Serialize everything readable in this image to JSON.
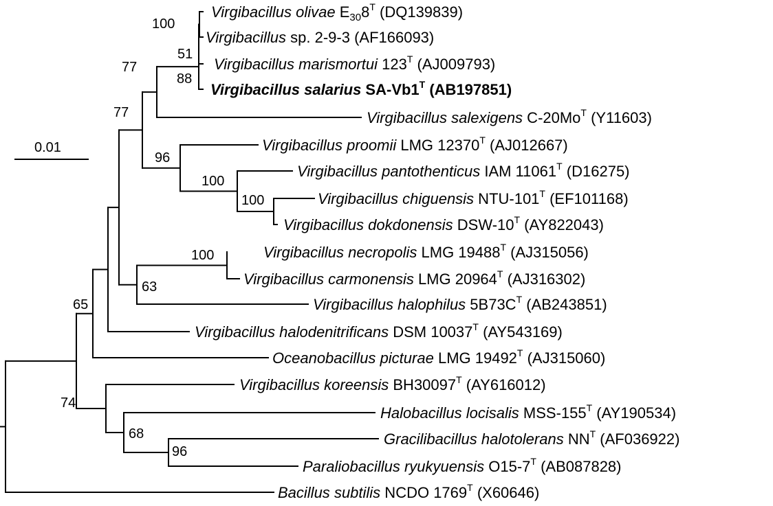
{
  "scale_bar": {
    "label": "0.01"
  },
  "taxa": [
    {
      "genus": "Virgibacillus",
      "species": "olivae",
      "strain_pre": "E",
      "strain_sub": "30",
      "strain_post": "8",
      "type": "T",
      "acc": "(DQ139839)",
      "bold": false
    },
    {
      "genus": "Virgibacillus",
      "species": "sp.",
      "strain_pre": "2-9-3",
      "strain_sub": "",
      "strain_post": "",
      "type": "",
      "acc": "(AF166093)",
      "bold": false,
      "species_upright": true
    },
    {
      "genus": "Virgibacillus",
      "species": "marismortui",
      "strain_pre": "123",
      "strain_sub": "",
      "strain_post": "",
      "type": "T",
      "acc": "(AJ009793)",
      "bold": false
    },
    {
      "genus": "Virgibacillus",
      "species": "salarius",
      "strain_pre": "SA-Vb1",
      "strain_sub": "",
      "strain_post": "",
      "type": "T",
      "acc": "(AB197851)",
      "bold": true
    },
    {
      "genus": "Virgibacillus",
      "species": "salexigens",
      "strain_pre": "C-20Mo",
      "strain_sub": "",
      "strain_post": "",
      "type": "T",
      "acc": "(Y11603)",
      "bold": false
    },
    {
      "genus": "Virgibacillus",
      "species": "proomii",
      "strain_pre": "LMG 12370",
      "strain_sub": "",
      "strain_post": "",
      "type": "T",
      "acc": "(AJ012667)",
      "bold": false
    },
    {
      "genus": "Virgibacillus",
      "species": "pantothenticus",
      "strain_pre": "IAM 11061",
      "strain_sub": "",
      "strain_post": "",
      "type": "T",
      "acc": "(D16275)",
      "bold": false
    },
    {
      "genus": "Virgibacillus",
      "species": "chiguensis",
      "strain_pre": "NTU-101",
      "strain_sub": "",
      "strain_post": "",
      "type": "T",
      "acc": "(EF101168)",
      "bold": false
    },
    {
      "genus": "Virgibacillus",
      "species": "dokdonensis",
      "strain_pre": "DSW-10",
      "strain_sub": "",
      "strain_post": "",
      "type": "T",
      "acc": "(AY822043)",
      "bold": false
    },
    {
      "genus": "Virgibacillus",
      "species": "necropolis",
      "strain_pre": "LMG 19488",
      "strain_sub": "",
      "strain_post": "",
      "type": "T",
      "acc": "(AJ315056)",
      "bold": false
    },
    {
      "genus": "Virgibacillus",
      "species": "carmonensis",
      "strain_pre": "LMG 20964",
      "strain_sub": "",
      "strain_post": "",
      "type": "T",
      "acc": "(AJ316302)",
      "bold": false
    },
    {
      "genus": "Virgibacillus",
      "species": "halophilus",
      "strain_pre": "5B73C",
      "strain_sub": "",
      "strain_post": "",
      "type": "T",
      "acc": "(AB243851)",
      "bold": false
    },
    {
      "genus": "Virgibacillus",
      "species": "halodenitrificans",
      "strain_pre": "DSM 10037",
      "strain_sub": "",
      "strain_post": "",
      "type": "T",
      "acc": "(AY543169)",
      "bold": false
    },
    {
      "genus": "Oceanobacillus",
      "species": "picturae",
      "strain_pre": "LMG 19492",
      "strain_sub": "",
      "strain_post": "",
      "type": "T",
      "acc": "(AJ315060)",
      "bold": false
    },
    {
      "genus": "Virgibacillus",
      "species": "koreensis",
      "strain_pre": "BH30097",
      "strain_sub": "",
      "strain_post": "",
      "type": "T",
      "acc": "(AY616012)",
      "bold": false
    },
    {
      "genus": "Halobacillus",
      "species": "locisalis",
      "strain_pre": "MSS-155",
      "strain_sub": "",
      "strain_post": "",
      "type": "T",
      "acc": "(AY190534)",
      "bold": false
    },
    {
      "genus": "Gracilibacillus",
      "species": "halotolerans",
      "strain_pre": "NN",
      "strain_sub": "",
      "strain_post": "",
      "type": "T",
      "acc": "(AF036922)",
      "bold": false
    },
    {
      "genus": "Paraliobacillus",
      "species": "ryukyuensis",
      "strain_pre": "O15-7",
      "strain_sub": "",
      "strain_post": "",
      "type": "T",
      "acc": "(AB087828)",
      "bold": false
    },
    {
      "genus": "Bacillus",
      "species": "subtilis",
      "strain_pre": "NCDO 1769",
      "strain_sub": "",
      "strain_post": "",
      "type": "T",
      "acc": "(X60646)",
      "bold": false
    }
  ],
  "bootstrap": [
    "100",
    "51",
    "88",
    "77",
    "77",
    "96",
    "100",
    "100",
    "100",
    "63",
    "65",
    "74",
    "68",
    "96"
  ]
}
